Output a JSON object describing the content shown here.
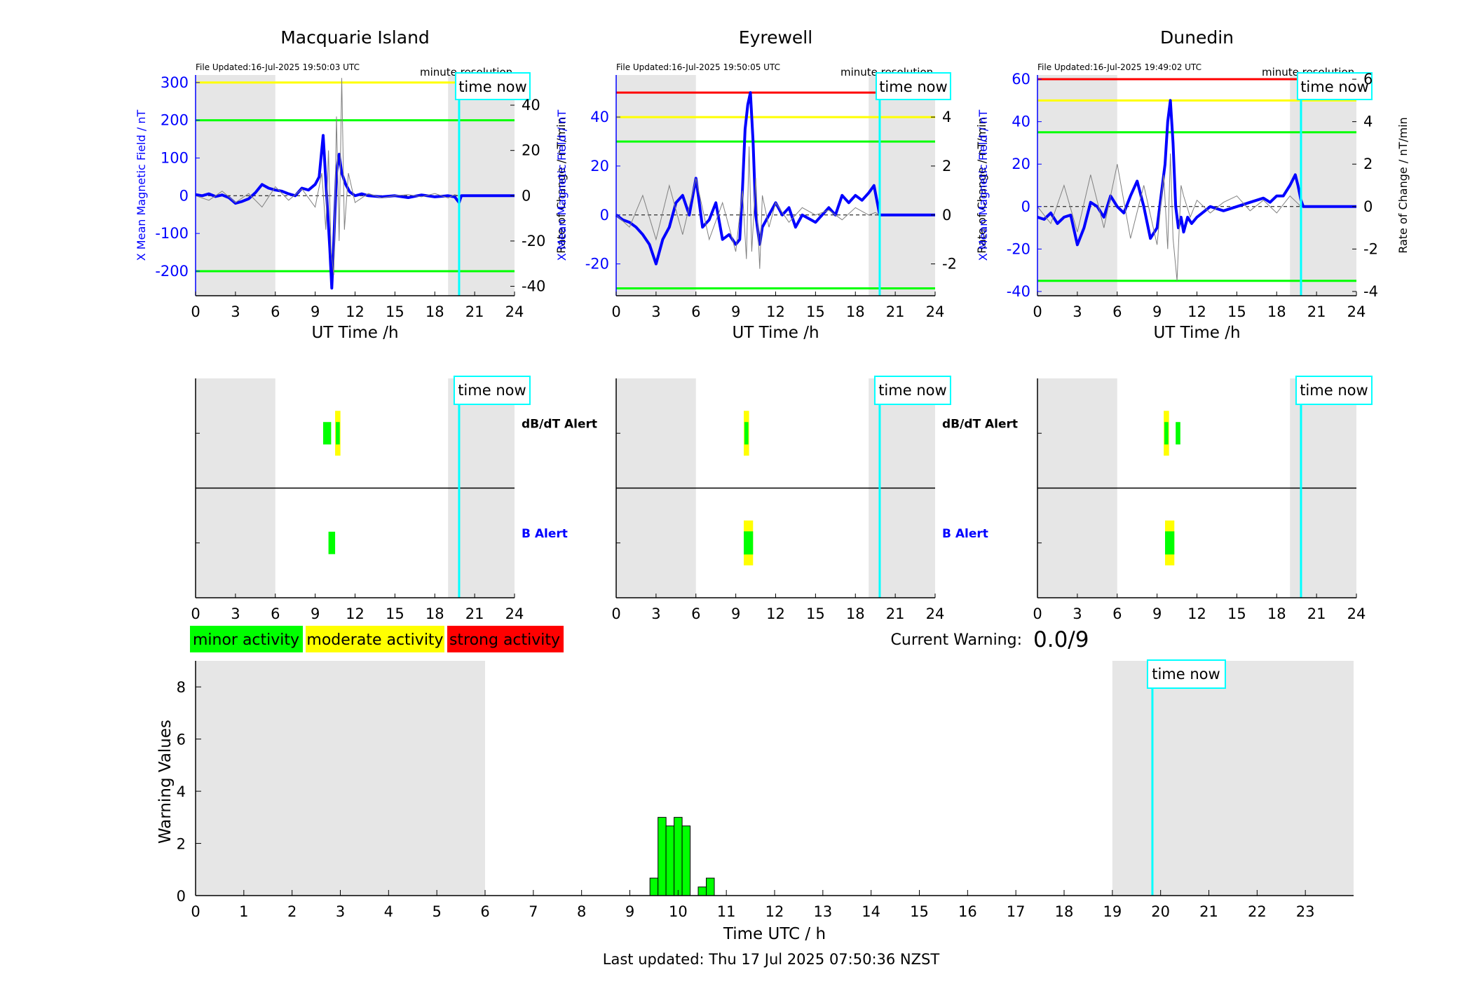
{
  "colors": {
    "blue": "#0000ff",
    "green": "#00ff00",
    "yellow": "#ffff00",
    "red": "#ff0000",
    "cyan": "#00ffff",
    "night_shading": "#e6e6e6",
    "rate_trace": "#808080"
  },
  "common": {
    "time_now_label": "time now",
    "minute_resolution_label": "minute resolution",
    "x_axis_label": "UT Time /h",
    "right_axis_label": "Rate of Change / nT/min",
    "left_axis_label": "X Mean Magnetic Field / nT",
    "dbdt_alert_label": "dB/dT Alert",
    "b_alert_label": "B Alert"
  },
  "legend": {
    "minor": "minor activity",
    "moderate": "moderate activity",
    "strong": "strong activity"
  },
  "current_warning": {
    "label": "Current Warning:",
    "value": "0.0/9"
  },
  "footer": {
    "last_updated": "Last updated: Thu 17 Jul 2025 07:50:36 NZST"
  },
  "chart_data": [
    {
      "type": "line",
      "station": "Macquarie Island",
      "file_updated": "File Updated:16-Jul-2025 19:50:03 UTC",
      "xlim": [
        0,
        24
      ],
      "xticks": [
        "0",
        "3",
        "6",
        "9",
        "12",
        "15",
        "18",
        "21",
        "24"
      ],
      "ylim_left": [
        -265,
        320
      ],
      "yticks_left": [
        "-200",
        "-100",
        "0",
        "100",
        "200",
        "300"
      ],
      "ylim_right": [
        -44.17,
        53.33
      ],
      "yticks_right": [
        "-40",
        "-20",
        "0",
        "20",
        "40"
      ],
      "night_shading": [
        [
          0,
          6
        ],
        [
          19,
          24
        ]
      ],
      "time_now": 19.83,
      "thresholds": [
        {
          "value": 300,
          "color": "yellow"
        },
        {
          "value": 200,
          "color": "green"
        },
        {
          "value": -200,
          "color": "green"
        }
      ],
      "series": [
        {
          "axis": "left",
          "color": "blue",
          "x": [
            0,
            0.5,
            1,
            1.5,
            2,
            2.5,
            3,
            3.5,
            4,
            4.5,
            5,
            5.5,
            6,
            6.5,
            7,
            7.5,
            8,
            8.5,
            9,
            9.3,
            9.6,
            9.8,
            10,
            10.1,
            10.25,
            10.4,
            10.6,
            10.8,
            11,
            11.3,
            11.6,
            12,
            12.5,
            13,
            14,
            15,
            16,
            17,
            18,
            19,
            19.5,
            19.83,
            20,
            24
          ],
          "y": [
            3,
            0,
            5,
            -2,
            2,
            -5,
            -20,
            -15,
            -8,
            8,
            30,
            20,
            15,
            12,
            5,
            0,
            20,
            15,
            30,
            50,
            160,
            40,
            -80,
            -140,
            -245,
            -120,
            60,
            110,
            60,
            30,
            10,
            0,
            5,
            0,
            -3,
            0,
            -5,
            2,
            -3,
            0,
            -3,
            -18,
            0,
            0
          ]
        },
        {
          "axis": "right",
          "color": "rate_trace",
          "x": [
            0,
            1,
            2,
            3,
            4,
            5,
            6,
            7,
            8,
            9,
            9.5,
            9.8,
            10,
            10.2,
            10.4,
            10.6,
            10.8,
            11,
            11.2,
            11.5,
            12,
            13,
            14,
            15,
            16,
            17,
            18,
            19,
            19.5,
            19.83
          ],
          "y": [
            0,
            -2,
            2,
            -3,
            1,
            -5,
            4,
            -2,
            3,
            -5,
            10,
            -15,
            20,
            -25,
            -35,
            35,
            -20,
            52,
            -15,
            10,
            -3,
            1,
            -1,
            0,
            0.5,
            -0.5,
            1,
            -1,
            0.5,
            0
          ]
        }
      ]
    },
    {
      "type": "line",
      "station": "Eyrewell",
      "file_updated": "File Updated:16-Jul-2025 19:50:05 UTC",
      "xlim": [
        0,
        24
      ],
      "xticks": [
        "0",
        "3",
        "6",
        "9",
        "12",
        "15",
        "18",
        "21",
        "24"
      ],
      "ylim_left": [
        -33,
        57.2
      ],
      "yticks_left": [
        "-20",
        "0",
        "20",
        "40"
      ],
      "ylim_right": [
        -3.3,
        5.72
      ],
      "yticks_right": [
        "-2",
        "0",
        "2",
        "4"
      ],
      "night_shading": [
        [
          0,
          6
        ],
        [
          19,
          24
        ]
      ],
      "time_now": 19.83,
      "thresholds": [
        {
          "value": 50,
          "color": "red"
        },
        {
          "value": 40,
          "color": "yellow"
        },
        {
          "value": 30,
          "color": "green"
        },
        {
          "value": -30,
          "color": "green"
        }
      ],
      "series": [
        {
          "axis": "left",
          "color": "blue",
          "x": [
            0,
            0.5,
            1,
            1.5,
            2,
            2.5,
            3,
            3.5,
            4,
            4.5,
            5,
            5.5,
            6,
            6.5,
            7,
            7.5,
            8,
            8.5,
            9,
            9.3,
            9.5,
            9.7,
            9.9,
            10.1,
            10.3,
            10.5,
            10.8,
            11,
            11.5,
            12,
            12.5,
            13,
            13.5,
            14,
            15,
            16,
            16.5,
            17,
            17.5,
            18,
            18.5,
            19,
            19.4,
            19.83,
            20,
            24
          ],
          "y": [
            0,
            -2,
            -3,
            -5,
            -8,
            -12,
            -20,
            -10,
            -5,
            5,
            8,
            0,
            15,
            -5,
            -2,
            5,
            -10,
            -8,
            -12,
            -10,
            10,
            35,
            45,
            50,
            30,
            0,
            -12,
            -5,
            0,
            5,
            0,
            3,
            -5,
            0,
            -3,
            3,
            0,
            8,
            5,
            8,
            6,
            9,
            12,
            0,
            0,
            0
          ]
        },
        {
          "axis": "right",
          "color": "rate_trace",
          "x": [
            0,
            1,
            2,
            3,
            4,
            5,
            6,
            7,
            8,
            9,
            9.5,
            9.8,
            10,
            10.2,
            10.5,
            10.8,
            11,
            11.5,
            12,
            13,
            14,
            15,
            16,
            17,
            18,
            19,
            19.5,
            19.83
          ],
          "y": [
            0,
            -0.5,
            0.8,
            -1,
            1.2,
            -0.8,
            1.5,
            -1,
            0.5,
            -1.5,
            1,
            -1.8,
            2.8,
            -1.5,
            1.5,
            -2.2,
            0.8,
            -0.5,
            0.5,
            -0.3,
            0.3,
            0,
            0.2,
            -0.2,
            0.3,
            0,
            0.1,
            0
          ]
        }
      ]
    },
    {
      "type": "line",
      "station": "Dunedin",
      "file_updated": "File Updated:16-Jul-2025 19:49:02 UTC",
      "xlim": [
        0,
        24
      ],
      "xticks": [
        "0",
        "3",
        "6",
        "9",
        "12",
        "15",
        "18",
        "21",
        "24"
      ],
      "ylim_left": [
        -42,
        62
      ],
      "yticks_left": [
        "-40",
        "-20",
        "0",
        "20",
        "40",
        "60"
      ],
      "ylim_right": [
        -4.2,
        6.2
      ],
      "yticks_right": [
        "-4",
        "-2",
        "0",
        "2",
        "4",
        "6"
      ],
      "night_shading": [
        [
          0,
          6
        ],
        [
          19,
          24
        ]
      ],
      "time_now": 19.83,
      "thresholds": [
        {
          "value": 60,
          "color": "red"
        },
        {
          "value": 50,
          "color": "yellow"
        },
        {
          "value": 35,
          "color": "green"
        },
        {
          "value": -35,
          "color": "green"
        }
      ],
      "series": [
        {
          "axis": "left",
          "color": "blue",
          "x": [
            0,
            0.5,
            1,
            1.5,
            2,
            2.5,
            3,
            3.5,
            4,
            4.5,
            5,
            5.5,
            6,
            6.5,
            7,
            7.5,
            8,
            8.5,
            9,
            9.3,
            9.6,
            9.8,
            10,
            10.2,
            10.4,
            10.6,
            10.8,
            11,
            11.3,
            11.6,
            12,
            13,
            14,
            15,
            16,
            17,
            17.5,
            18,
            18.5,
            19,
            19.4,
            19.6,
            19.83,
            20,
            24
          ],
          "y": [
            -5,
            -6,
            -3,
            -8,
            -5,
            -4,
            -18,
            -10,
            2,
            0,
            -5,
            5,
            0,
            -3,
            5,
            12,
            0,
            -15,
            -10,
            5,
            20,
            40,
            50,
            30,
            0,
            -10,
            -5,
            -12,
            -5,
            -8,
            -5,
            0,
            -2,
            0,
            2,
            4,
            2,
            5,
            5,
            10,
            15,
            10,
            3,
            0,
            0
          ]
        },
        {
          "axis": "right",
          "color": "rate_trace",
          "x": [
            0,
            1,
            2,
            3,
            4,
            5,
            6,
            7,
            8,
            9,
            9.5,
            9.8,
            10,
            10.2,
            10.5,
            10.8,
            11,
            11.5,
            12,
            13,
            14,
            15,
            16,
            17,
            18,
            19,
            19.5,
            19.83
          ],
          "y": [
            0,
            -0.8,
            1,
            -1.2,
            1.5,
            -1,
            2,
            -1.5,
            1,
            -1.8,
            1.5,
            -2,
            2.5,
            -1.5,
            -3.5,
            1,
            0.5,
            -0.5,
            0.3,
            -0.3,
            0.2,
            0.5,
            -0.2,
            0.3,
            -0.3,
            0.5,
            0.2,
            0
          ]
        }
      ]
    },
    {
      "type": "bar",
      "panel": "alerts",
      "station": "Macquarie Island",
      "xlim": [
        0,
        24
      ],
      "xticks": [
        "0",
        "3",
        "6",
        "9",
        "12",
        "15",
        "18",
        "21",
        "24"
      ],
      "night_shading": [
        [
          0,
          6
        ],
        [
          19,
          24
        ]
      ],
      "time_now": 19.83,
      "rows": [
        {
          "name": "dB/dT Alert",
          "blocks": [
            {
              "start": 9.6,
              "end": 10.2,
              "level": "minor"
            },
            {
              "start": 10.5,
              "end": 10.9,
              "level": "moderate"
            },
            {
              "start": 10.55,
              "end": 10.85,
              "level": "minor"
            }
          ]
        },
        {
          "name": "B Alert",
          "blocks": [
            {
              "start": 10.0,
              "end": 10.5,
              "level": "minor"
            }
          ]
        }
      ]
    },
    {
      "type": "bar",
      "panel": "alerts",
      "station": "Eyrewell",
      "xlim": [
        0,
        24
      ],
      "xticks": [
        "0",
        "3",
        "6",
        "9",
        "12",
        "15",
        "18",
        "21",
        "24"
      ],
      "night_shading": [
        [
          0,
          6
        ],
        [
          19,
          24
        ]
      ],
      "time_now": 19.83,
      "rows": [
        {
          "name": "dB/dT Alert",
          "blocks": [
            {
              "start": 9.6,
              "end": 10.0,
              "level": "moderate"
            },
            {
              "start": 9.65,
              "end": 9.95,
              "level": "minor"
            }
          ]
        },
        {
          "name": "B Alert",
          "blocks": [
            {
              "start": 9.6,
              "end": 10.3,
              "level": "moderate"
            },
            {
              "start": 9.6,
              "end": 10.3,
              "level": "minor",
              "height": 0.55
            }
          ]
        }
      ]
    },
    {
      "type": "bar",
      "panel": "alerts",
      "station": "Dunedin",
      "xlim": [
        0,
        24
      ],
      "xticks": [
        "0",
        "3",
        "6",
        "9",
        "12",
        "15",
        "18",
        "21",
        "24"
      ],
      "night_shading": [
        [
          0,
          6
        ],
        [
          19,
          24
        ]
      ],
      "time_now": 19.83,
      "rows": [
        {
          "name": "dB/dT Alert",
          "blocks": [
            {
              "start": 9.5,
              "end": 9.9,
              "level": "moderate"
            },
            {
              "start": 9.55,
              "end": 9.85,
              "level": "minor"
            },
            {
              "start": 10.4,
              "end": 10.75,
              "level": "minor"
            }
          ]
        },
        {
          "name": "B Alert",
          "blocks": [
            {
              "start": 9.6,
              "end": 10.3,
              "level": "moderate"
            },
            {
              "start": 9.6,
              "end": 10.3,
              "level": "minor",
              "height": 0.55
            }
          ]
        }
      ]
    },
    {
      "type": "bar",
      "panel": "warning",
      "xlabel": "Time UTC / h",
      "ylabel": "Warning Values",
      "xlim": [
        0,
        24
      ],
      "ylim": [
        0,
        9
      ],
      "xticks": [
        "0",
        "1",
        "2",
        "3",
        "4",
        "5",
        "6",
        "7",
        "8",
        "9",
        "10",
        "11",
        "12",
        "13",
        "14",
        "15",
        "16",
        "17",
        "18",
        "19",
        "20",
        "21",
        "22",
        "23"
      ],
      "yticks": [
        "0",
        "2",
        "4",
        "6",
        "8"
      ],
      "night_shading": [
        [
          0,
          6
        ],
        [
          19,
          24
        ]
      ],
      "time_now": 19.83,
      "bar_width": 0.167,
      "bars": [
        {
          "x": 9.5,
          "value": 0.67
        },
        {
          "x": 9.667,
          "value": 3
        },
        {
          "x": 9.833,
          "value": 2.67
        },
        {
          "x": 10.0,
          "value": 3
        },
        {
          "x": 10.167,
          "value": 2.67
        },
        {
          "x": 10.5,
          "value": 0.33
        },
        {
          "x": 10.667,
          "value": 0.67
        }
      ]
    }
  ]
}
